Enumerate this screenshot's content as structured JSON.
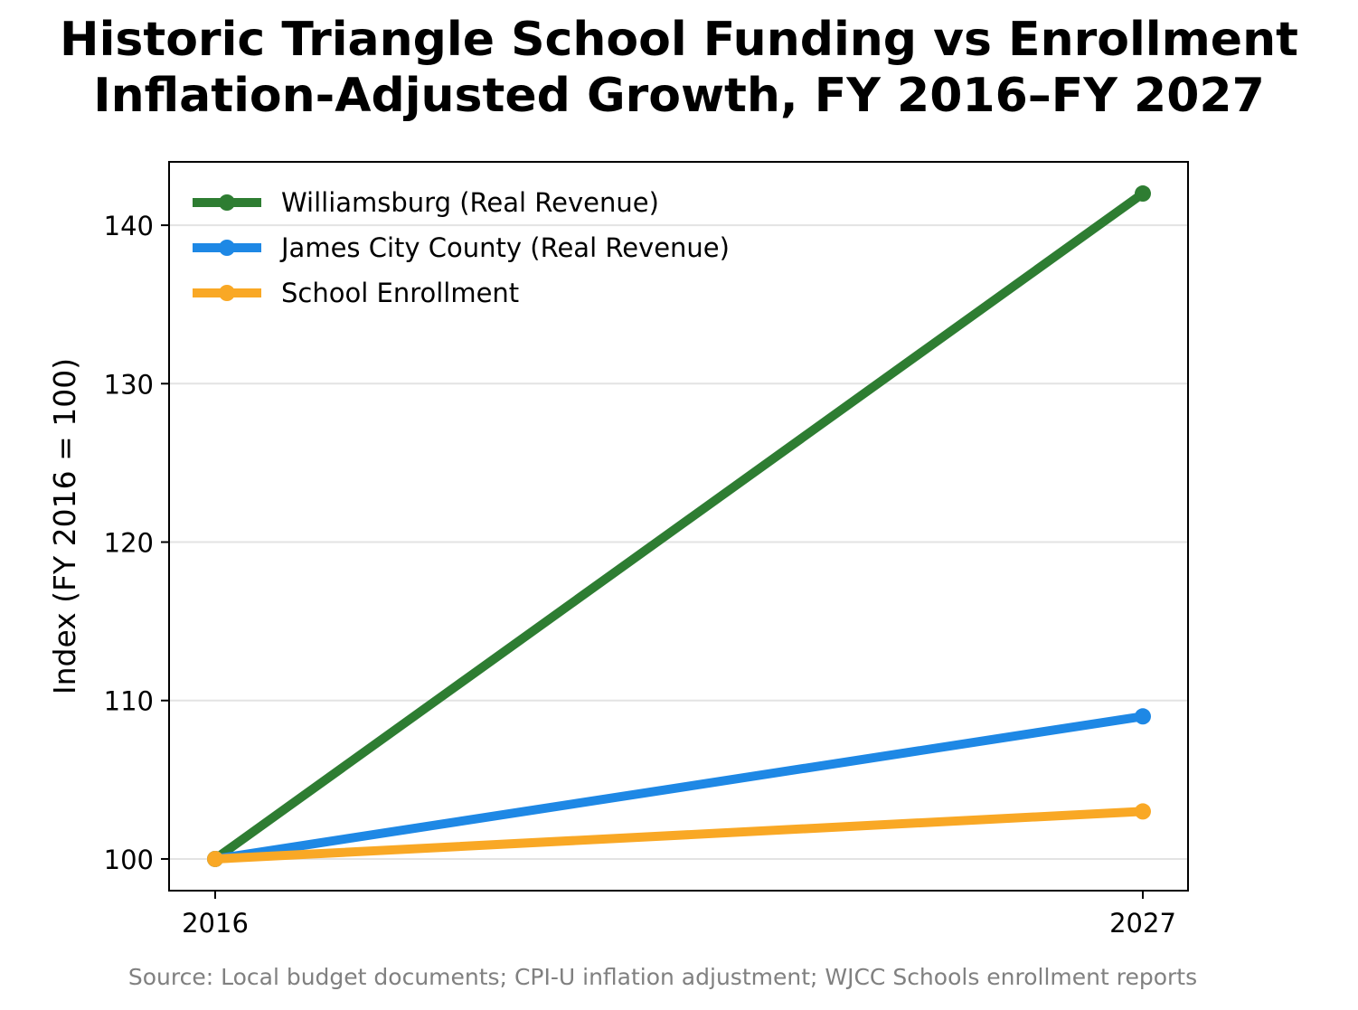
{
  "chart_data": {
    "type": "line",
    "title": [
      "Historic Triangle School Funding vs Enrollment",
      "Inflation-Adjusted Growth, FY 2016–FY 2027"
    ],
    "xlabel": "",
    "ylabel": "Index (FY 2016 = 100)",
    "x": [
      2016,
      2027
    ],
    "xticks": [
      "2016",
      "2027"
    ],
    "yticks": [
      "100",
      "110",
      "120",
      "130",
      "140"
    ],
    "ylim": [
      98,
      144
    ],
    "grid": "horizontal",
    "legend_position": "top-left",
    "series": [
      {
        "name": "Williamsburg (Real Revenue)",
        "values": [
          100,
          142
        ],
        "color": "#2e7d32"
      },
      {
        "name": "James City County (Real Revenue)",
        "values": [
          100,
          109
        ],
        "color": "#1e88e5"
      },
      {
        "name": "School Enrollment",
        "values": [
          100,
          103
        ],
        "color": "#f9a825"
      }
    ],
    "source_note": "Source: Local budget documents; CPI-U inflation adjustment; WJCC Schools enrollment reports"
  }
}
